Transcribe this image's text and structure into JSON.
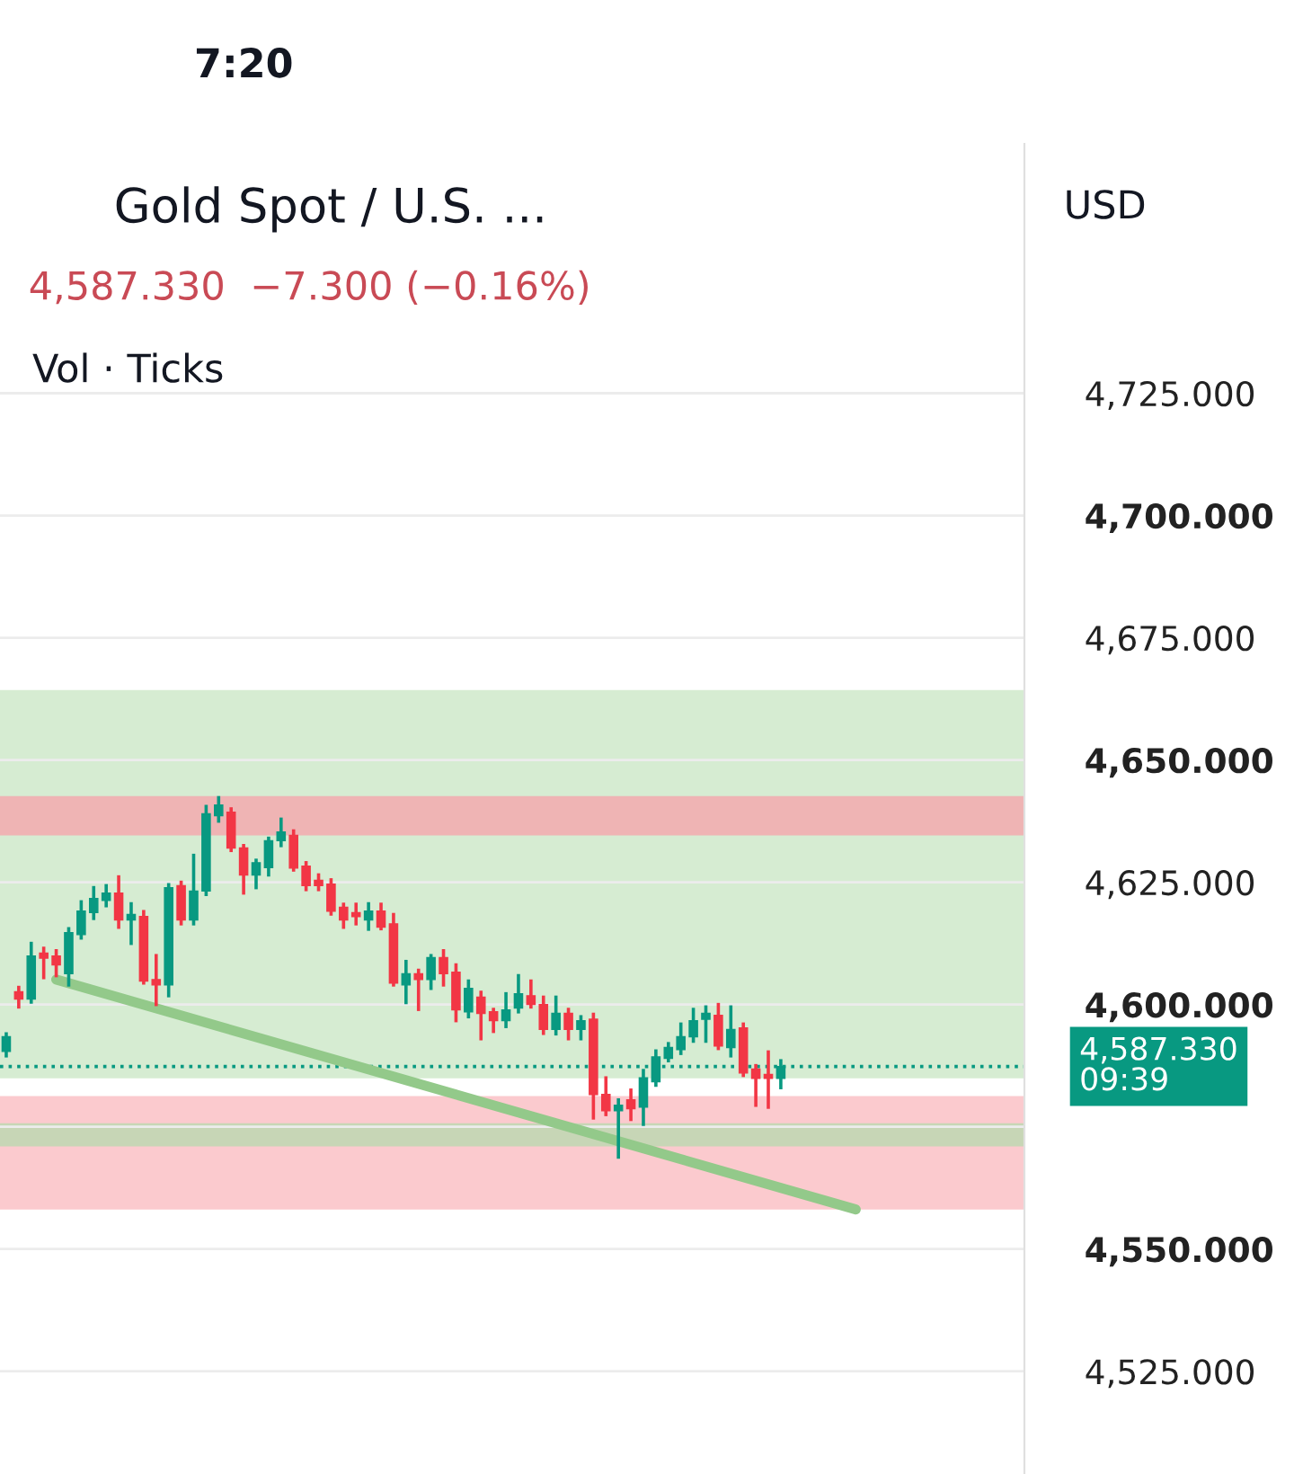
{
  "chart_data": {
    "type": "candlestick",
    "title": "Gold Spot / U.S. ...",
    "subtitle": "4,587.330  −7.300 (−0.16%)",
    "annotations": [
      "7:20",
      "Vol · Ticks",
      "USD"
    ],
    "categories": [
      null,
      null,
      null,
      null,
      null,
      null,
      null,
      null,
      null,
      null,
      null,
      null,
      null,
      null,
      null,
      null,
      null,
      null,
      null,
      null,
      null,
      null,
      null,
      null,
      null,
      null,
      null,
      null,
      null,
      null,
      null,
      null,
      null,
      null,
      null,
      null,
      null,
      null,
      null,
      null,
      null,
      null,
      null,
      null,
      null,
      null,
      null,
      null,
      null,
      null,
      null,
      null,
      null,
      null,
      null,
      null,
      null,
      null,
      null,
      null,
      null,
      null,
      null,
      null,
      null,
      null,
      null,
      null,
      null,
      null,
      null,
      null,
      null,
      null,
      null,
      null,
      null,
      null,
      null,
      null,
      null,
      null
    ],
    "ohlc": [
      [
        4590.4,
        4594,
        4589.5,
        4593.4
      ],
      [
        4602.6,
        4603.5,
        4599.5,
        4601.1
      ],
      [
        4601.1,
        4612.5,
        4600.5,
        4609.9
      ],
      [
        4610.5,
        4611.5,
        4605.5,
        4609.5
      ],
      [
        4609.9,
        4611,
        4605.9,
        4608.1
      ],
      [
        4606.3,
        4615.5,
        4604,
        4614.7
      ],
      [
        4614.3,
        4621,
        4613.6,
        4619.1
      ],
      [
        4618.8,
        4623.9,
        4617.6,
        4621.7
      ],
      [
        4621.3,
        4624.3,
        4620.2,
        4622.8
      ],
      [
        4622.8,
        4626.1,
        4615.8,
        4617.3
      ],
      [
        4617.3,
        4620.6,
        4612.5,
        4618.4
      ],
      [
        4618,
        4619,
        4604.4,
        4604.8
      ],
      [
        4605.1,
        4610,
        4600,
        4604
      ],
      [
        4604,
        4624.5,
        4601.8,
        4623.9
      ],
      [
        4624.3,
        4625,
        4616.5,
        4617.3
      ],
      [
        4617.3,
        4630.5,
        4616.5,
        4623.2
      ],
      [
        4623.2,
        4640.5,
        4622.5,
        4639
      ],
      [
        4638.6,
        4642.3,
        4637.5,
        4640.8
      ],
      [
        4639.3,
        4640,
        4631.5,
        4632
      ],
      [
        4632,
        4632.5,
        4622.8,
        4626.5
      ],
      [
        4626.5,
        4629.5,
        4623.9,
        4629
      ],
      [
        4628,
        4634,
        4626.5,
        4633.5
      ],
      [
        4633.5,
        4637.9,
        4632.5,
        4635.3
      ],
      [
        4634.6,
        4635.5,
        4627.5,
        4627.9
      ],
      [
        4628.3,
        4629,
        4623.5,
        4624.3
      ],
      [
        4625.4,
        4626.5,
        4623.5,
        4624.3
      ],
      [
        4624.6,
        4625.5,
        4618.5,
        4619.1
      ],
      [
        4619.9,
        4620.5,
        4615.8,
        4617.3
      ],
      [
        4618.8,
        4620.5,
        4616.5,
        4618
      ],
      [
        4617.3,
        4620.6,
        4615.4,
        4619.1
      ],
      [
        4619.1,
        4620.5,
        4615.5,
        4615.8
      ],
      [
        4616.5,
        4618.4,
        4604,
        4604.4
      ],
      [
        4604,
        4608.8,
        4600.4,
        4606.3
      ],
      [
        4606.3,
        4607,
        4599,
        4605.1
      ],
      [
        4605.1,
        4610,
        4603.3,
        4609.6
      ],
      [
        4609.6,
        4611,
        4604,
        4606.3
      ],
      [
        4606.6,
        4608.1,
        4596.7,
        4598.9
      ],
      [
        4598.5,
        4604.8,
        4597.5,
        4603.3
      ],
      [
        4601.5,
        4602.5,
        4593,
        4598.2
      ],
      [
        4598.5,
        4599,
        4594.5,
        4596.7
      ],
      [
        4596.7,
        4602.2,
        4595.5,
        4598.9
      ],
      [
        4599.3,
        4605.9,
        4598.5,
        4602.2
      ],
      [
        4601.8,
        4604.8,
        4599.5,
        4600
      ],
      [
        4600,
        4601.5,
        4594.1,
        4594.9
      ],
      [
        4594.9,
        4601.5,
        4594,
        4598.2
      ],
      [
        4598.2,
        4599,
        4593,
        4594.9
      ],
      [
        4594.9,
        4597.5,
        4593,
        4596.7
      ],
      [
        4597,
        4598,
        4576.8,
        4581.6
      ],
      [
        4581.6,
        4585,
        4577.5,
        4578.3
      ],
      [
        4578.3,
        4580.5,
        4568.8,
        4579.4
      ],
      [
        4580.5,
        4582.5,
        4576.5,
        4578.7
      ],
      [
        4579,
        4586.5,
        4575.5,
        4585
      ],
      [
        4584.2,
        4590.5,
        4583.5,
        4589.3
      ],
      [
        4589,
        4592,
        4588.5,
        4591.2
      ],
      [
        4590.8,
        4596,
        4590,
        4593.4
      ],
      [
        4593.4,
        4599,
        4592.5,
        4596.7
      ],
      [
        4597,
        4599.5,
        4592.5,
        4598.2
      ],
      [
        4597.8,
        4600,
        4591,
        4591.5
      ],
      [
        4591.2,
        4599.5,
        4589.5,
        4594.9
      ],
      [
        4595.2,
        4596,
        4585.5,
        4586
      ],
      [
        4586.8,
        4587.5,
        4579.4,
        4584.9
      ],
      [
        4585.7,
        4590.3,
        4579,
        4584.9
      ],
      [
        4584.9,
        4588.5,
        4583,
        4587.33
      ],
      null,
      null,
      null,
      null,
      null,
      null,
      null,
      null,
      null,
      null,
      null,
      null,
      null,
      null,
      null,
      null,
      null,
      null,
      null
    ],
    "colors": [
      "#089981",
      "#f23645",
      "#089981",
      "#f23645",
      "#f23645",
      "#089981",
      "#089981",
      "#089981",
      "#089981",
      "#f23645",
      "#089981",
      "#f23645",
      "#f23645",
      "#089981",
      "#f23645",
      "#089981",
      "#089981",
      "#089981",
      "#f23645",
      "#f23645",
      "#089981",
      "#089981",
      "#089981",
      "#f23645",
      "#f23645",
      "#f23645",
      "#f23645",
      "#f23645",
      "#f23645",
      "#089981",
      "#f23645",
      "#f23645",
      "#089981",
      "#f23645",
      "#089981",
      "#f23645",
      "#f23645",
      "#089981",
      "#f23645",
      "#f23645",
      "#089981",
      "#089981",
      "#f23645",
      "#f23645",
      "#089981",
      "#f23645",
      "#089981",
      "#f23645",
      "#f23645",
      "#089981",
      "#f23645",
      "#089981",
      "#089981",
      "#089981",
      "#089981",
      "#089981",
      "#089981",
      "#f23645",
      "#089981",
      "#f23645",
      "#f23645",
      "#f23645",
      "#089981",
      null,
      null,
      null,
      null,
      null,
      null,
      null,
      null,
      null,
      null,
      null,
      null,
      null,
      null,
      null,
      null,
      null,
      null,
      null
    ],
    "series": [
      {
        "type": "line",
        "color": "#93c98a",
        "values": [
          null,
          null,
          null,
          null,
          4605.1,
          null,
          null,
          null,
          null,
          null,
          null,
          null,
          null,
          null,
          null,
          null,
          null,
          null,
          null,
          null,
          null,
          null,
          null,
          null,
          null,
          null,
          null,
          null,
          null,
          null,
          null,
          null,
          null,
          null,
          null,
          null,
          null,
          null,
          null,
          null,
          null,
          null,
          null,
          null,
          null,
          null,
          null,
          null,
          null,
          null,
          null,
          null,
          null,
          null,
          null,
          null,
          null,
          null,
          null,
          null,
          null,
          null,
          null,
          null,
          null,
          null,
          null,
          null,
          4558.1,
          null,
          null,
          null,
          null,
          null,
          null,
          null,
          null,
          null,
          null,
          null,
          null,
          null
        ]
      }
    ],
    "bands": [
      {
        "axis": "y",
        "from": 4584.9,
        "to": 4664.3,
        "color": "#c8e6c3"
      },
      {
        "axis": "y",
        "from": 4558.1,
        "to": 4581.3,
        "color": "#f9b8be"
      },
      {
        "axis": "y",
        "from": 4634.6,
        "to": 4642.6,
        "color": "#f7a1aa"
      },
      {
        "axis": "y",
        "from": 4571,
        "to": 4575.7,
        "color": "#b5d9ae"
      }
    ],
    "ref_lines": [
      {
        "axis": "y",
        "value": 4587.33,
        "label": "4,587.330\n09:39",
        "color": "#089981",
        "line_style": "dotted"
      }
    ],
    "ylim": [
      4504,
      4776
    ],
    "yticks": [
      {
        "value": 4525,
        "label": "4,525.000"
      },
      {
        "value": 4550,
        "label": "4,550.000"
      },
      {
        "value": 4575,
        "label": null
      },
      {
        "value": 4600,
        "label": "4,600.000"
      },
      {
        "value": 4625,
        "label": "4,625.000"
      },
      {
        "value": 4650,
        "label": "4,650.000"
      },
      {
        "value": 4675,
        "label": "4,675.000"
      },
      {
        "value": 4700,
        "label": "4,700.000"
      },
      {
        "value": 4725,
        "label": "4,725.000"
      }
    ],
    "grid": "y"
  }
}
